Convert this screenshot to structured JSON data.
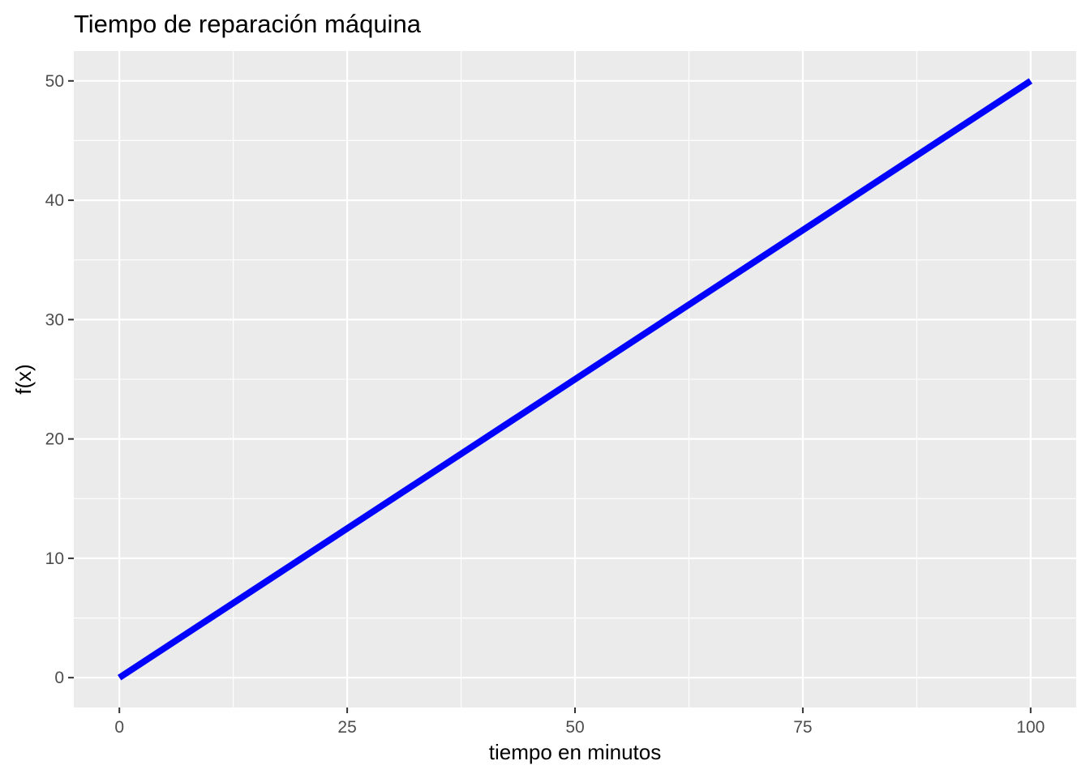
{
  "chart_data": {
    "type": "line",
    "title": "Tiempo de reparación máquina",
    "xlabel": "tiempo en minutos",
    "ylabel": "f(x)",
    "x": [
      0,
      100
    ],
    "series": [
      {
        "values": [
          0,
          50
        ],
        "color": "#0000ff"
      }
    ],
    "xlim": [
      -5,
      105
    ],
    "ylim": [
      -2.5,
      52.5
    ],
    "x_ticks": [
      0,
      25,
      50,
      75,
      100
    ],
    "x_tick_labels": [
      "0",
      "25",
      "50",
      "75",
      "100"
    ],
    "x_minor_ticks": [
      12.5,
      37.5,
      62.5,
      87.5
    ],
    "y_ticks": [
      0,
      10,
      20,
      30,
      40,
      50
    ],
    "y_tick_labels": [
      "0",
      "10",
      "20",
      "30",
      "40",
      "50"
    ],
    "y_minor_ticks": [
      5,
      15,
      25,
      35,
      45
    ],
    "grid": true,
    "legend": "none",
    "panel_background": "#ebebeb",
    "grid_color": "#ffffff",
    "tick_color": "#333333",
    "tick_label_color": "#4d4d4d"
  }
}
